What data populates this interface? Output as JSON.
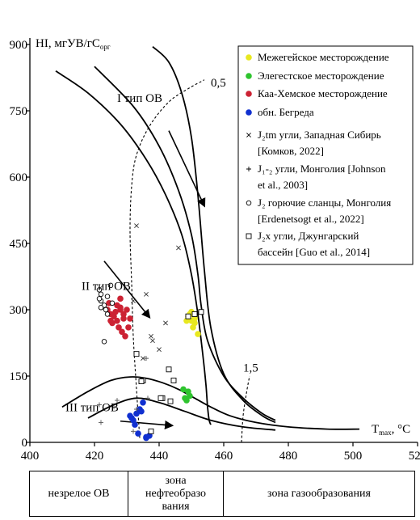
{
  "chart_data": {
    "type": "scatter",
    "x_axis": {
      "label_main": "T",
      "label_sub": "max",
      "unit": ", °C",
      "range": [
        400,
        520
      ],
      "ticks": [
        400,
        420,
        440,
        460,
        480,
        500,
        520
      ]
    },
    "y_axis": {
      "label_main": "HI, мгУВ/гС",
      "label_sub": "орг",
      "range": [
        0,
        900
      ],
      "ticks": [
        0,
        150,
        300,
        450,
        600,
        750,
        900
      ]
    },
    "grid": false,
    "legend_position": "top-right",
    "legend": [
      {
        "label": "Межегейское месторождение",
        "marker": "circle-filled",
        "color": "#e8e820"
      },
      {
        "label": "Элегестское месторождение",
        "marker": "circle-filled",
        "color": "#2ec42e"
      },
      {
        "label": "Каа-Хемское месторождение",
        "marker": "circle-filled",
        "color": "#cc2233"
      },
      {
        "label": "обн. Бегреда",
        "marker": "circle-filled",
        "color": "#1030d0"
      },
      {
        "label": "J₂tm угли, Западная Сибирь",
        "label2": "[Комков, 2022]",
        "marker": "x"
      },
      {
        "label": "J₁-₂ угли, Монголия [Johnson",
        "label2": "et al., 2003]",
        "marker": "plus"
      },
      {
        "label": "J₂ горючие сланцы, Монголия",
        "label2": "[Erdenetsogt et al., 2022]",
        "marker": "circle-open"
      },
      {
        "label": "J₂x угли, Джунгарский",
        "label2": "бассейн [Guo et al., 2014]",
        "marker": "square-open"
      }
    ],
    "annotations": [
      {
        "text": "I тип ОВ",
        "x": 427,
        "y": 770
      },
      {
        "text": "II тип ОВ",
        "x": 416,
        "y": 345
      },
      {
        "text": "III тип ОВ",
        "x": 411,
        "y": 70
      },
      {
        "text": "0,5",
        "x": 456,
        "y": 805
      },
      {
        "text": "1,5",
        "x": 466,
        "y": 160
      }
    ],
    "series": [
      {
        "name": "Межегейское месторождение",
        "marker": "circle-filled",
        "color": "#e8e820",
        "x": [
          449,
          450,
          451,
          449.5,
          450.5,
          451,
          448.5,
          450,
          452,
          451
        ],
        "y": [
          285,
          275,
          270,
          290,
          260,
          280,
          275,
          295,
          245,
          285
        ]
      },
      {
        "name": "Элегестское месторождение",
        "marker": "circle-filled",
        "color": "#2ec42e",
        "x": [
          447.5,
          449,
          448.5,
          449.5,
          448
        ],
        "y": [
          120,
          115,
          95,
          105,
          100
        ]
      },
      {
        "name": "Каа-Хемское месторождение",
        "marker": "circle-filled",
        "color": "#cc2233",
        "x": [
          424,
          425,
          426,
          427,
          428,
          429,
          430,
          424.5,
          425.5,
          427.5,
          428.5,
          429,
          430.5,
          426.5,
          428,
          429.5,
          427,
          431,
          428,
          425
        ],
        "y": [
          300,
          290,
          285,
          310,
          305,
          290,
          300,
          315,
          270,
          260,
          250,
          280,
          260,
          295,
          325,
          240,
          275,
          280,
          300,
          275
        ]
      },
      {
        "name": "обн. Бегреда",
        "marker": "circle-filled",
        "color": "#1030d0",
        "x": [
          431,
          432,
          433,
          434,
          435,
          436,
          437,
          431.5,
          433.5,
          432.5,
          434.5,
          436
        ],
        "y": [
          60,
          50,
          65,
          75,
          90,
          10,
          15,
          55,
          20,
          40,
          70,
          12
        ]
      },
      {
        "name": "J₂tm угли, Западная Сибирь [Комков, 2022]",
        "marker": "x",
        "color": "#333333",
        "x": [
          433,
          436,
          437.5,
          440,
          442,
          446,
          438,
          435,
          432
        ],
        "y": [
          490,
          335,
          240,
          210,
          270,
          440,
          230,
          190,
          320
        ]
      },
      {
        "name": "J₁-₂ угли, Монголия [Johnson et al., 2003]",
        "marker": "plus",
        "color": "#555555",
        "x": [
          421.5,
          422,
          426,
          427,
          432,
          435,
          436,
          436.5,
          433
        ],
        "y": [
          85,
          45,
          80,
          95,
          25,
          140,
          190,
          100,
          75
        ]
      },
      {
        "name": "J₂ горючие сланцы, Монголия [Erdenetsogt et al., 2022]",
        "marker": "circle-open",
        "color": "#000000",
        "x": [
          421.5,
          422,
          422,
          423,
          423.5,
          424,
          424,
          425,
          425.5,
          422,
          421.5,
          423
        ],
        "y": [
          345,
          335,
          320,
          310,
          300,
          290,
          330,
          355,
          315,
          305,
          325,
          228
        ]
      },
      {
        "name": "J₂x угли, Джунгарский бассейн [Guo et al., 2014]",
        "marker": "square-open",
        "color": "#000000",
        "x": [
          433,
          435,
          437.5,
          441,
          443,
          443.5,
          444.5,
          449,
          451,
          453,
          434.5,
          440.5
        ],
        "y": [
          200,
          140,
          25,
          100,
          165,
          93,
          140,
          285,
          290,
          295,
          138,
          100
        ]
      }
    ],
    "curves": [
      {
        "kind": "type-I boundary (outer)",
        "style": "solid",
        "x": [
          408,
          418,
          428,
          436,
          442,
          447,
          450,
          452,
          453.5,
          454.5,
          455,
          455.5,
          456
        ],
        "y": [
          840,
          790,
          720,
          640,
          560,
          470,
          380,
          290,
          200,
          130,
          80,
          50,
          40
        ]
      },
      {
        "kind": "type-I boundary (inner)",
        "style": "solid",
        "x": [
          438,
          443,
          447,
          450,
          452,
          454,
          456,
          460,
          466,
          472,
          476
        ],
        "y": [
          895,
          860,
          790,
          690,
          560,
          390,
          260,
          155,
          95,
          60,
          45
        ]
      },
      {
        "kind": "type-II boundary",
        "style": "solid",
        "x": [
          420,
          432,
          440,
          446,
          450,
          452,
          453,
          455,
          460,
          466,
          472,
          476
        ],
        "y": [
          850,
          760,
          670,
          570,
          470,
          380,
          310,
          230,
          150,
          100,
          65,
          50
        ]
      },
      {
        "kind": "type-III boundary",
        "style": "solid",
        "x": [
          410,
          418,
          425,
          431,
          436,
          441,
          446,
          451,
          456,
          462,
          470,
          480,
          492,
          502
        ],
        "y": [
          80,
          115,
          140,
          148,
          145,
          135,
          120,
          100,
          80,
          60,
          45,
          35,
          30,
          30
        ]
      },
      {
        "kind": "lower curve",
        "style": "solid",
        "x": [
          418,
          426,
          433,
          440,
          448,
          456,
          466,
          476
        ],
        "y": [
          55,
          85,
          100,
          90,
          70,
          50,
          35,
          28
        ]
      },
      {
        "kind": "Ro 0,5 isoline",
        "style": "dashed",
        "x": [
          434,
          433,
          432,
          431.5,
          431,
          431.5,
          433,
          437,
          443,
          449,
          454
        ],
        "y": [
          10,
          120,
          240,
          360,
          480,
          580,
          650,
          715,
          770,
          800,
          820
        ]
      },
      {
        "kind": "Ro 1,5 isoline",
        "style": "dashed",
        "x": [
          465.5,
          466,
          467,
          468
        ],
        "y": [
          0,
          60,
          110,
          150
        ]
      }
    ],
    "arrows": [
      {
        "from": [
          443,
          705
        ],
        "to": [
          454,
          535
        ]
      },
      {
        "from": [
          423,
          410
        ],
        "to": [
          437,
          283
        ]
      },
      {
        "from": [
          428,
          48
        ],
        "to": [
          444,
          38
        ]
      }
    ]
  },
  "zones": [
    {
      "label": "незрелое ОВ"
    },
    {
      "label": "зона нефтеобразования",
      "lines": [
        "зона",
        "нефтеобразо",
        "вания"
      ]
    },
    {
      "label": "зона газообразования"
    }
  ]
}
